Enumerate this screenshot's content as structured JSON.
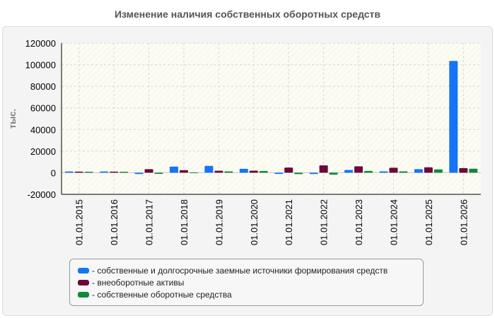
{
  "title": "Изменение наличия собственных оборотных средств",
  "colors": {
    "series": [
      "#1475f5",
      "#6b0a3a",
      "#0e8a3a"
    ]
  },
  "chart_data": {
    "type": "bar",
    "title": "Изменение наличия собственных оборотных средств",
    "xlabel": "",
    "ylabel": "тыс.",
    "ylim": [
      -20000,
      120000
    ],
    "yticks": [
      -20000,
      0,
      20000,
      40000,
      60000,
      80000,
      100000,
      120000
    ],
    "ytick_labels": [
      "-20000",
      "0",
      "20000",
      "40000",
      "60000",
      "80000",
      "100000",
      "120000"
    ],
    "grid": true,
    "legend_position": "bottom",
    "categories": [
      "01.01.2015",
      "01.01.2016",
      "01.01.2017",
      "01.01.2018",
      "01.01.2019",
      "01.01.2020",
      "01.01.2021",
      "01.01.2022",
      "01.01.2023",
      "01.01.2024",
      "01.01.2025",
      "01.01.2026"
    ],
    "series": [
      {
        "name": "- собственные и долгосрочные заемные источники формирования средств",
        "values": [
          1200,
          1200,
          -1200,
          5700,
          6300,
          3600,
          -1100,
          -1200,
          2600,
          1300,
          3300,
          103500
        ]
      },
      {
        "name": "- внеоборотные активы",
        "values": [
          1000,
          1000,
          3300,
          2400,
          1800,
          1900,
          4800,
          6800,
          5900,
          4600,
          5000,
          4300
        ]
      },
      {
        "name": "- собственные оборотные средства",
        "values": [
          900,
          900,
          -1000,
          300,
          1300,
          1600,
          -1300,
          -1800,
          1700,
          1300,
          3100,
          3700
        ]
      }
    ]
  }
}
